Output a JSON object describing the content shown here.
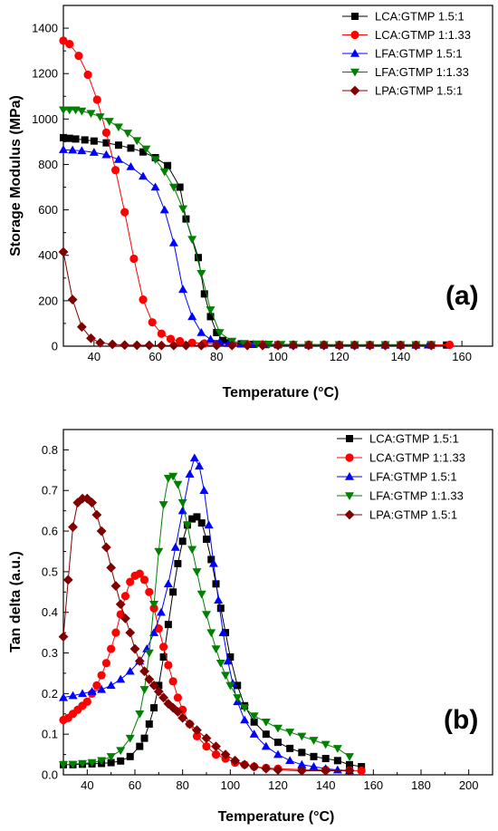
{
  "legend_entries": [
    "LCA:GTMP 1.5:1",
    "LCA:GTMP 1:1.33",
    "LFA:GTMP 1.5:1",
    "LFA:GTMP 1:1.33",
    "LPA:GTMP 1.5:1"
  ],
  "series_style": [
    {
      "color": "#000000",
      "marker": "square"
    },
    {
      "color": "#ff0000",
      "marker": "circle"
    },
    {
      "color": "#0000ff",
      "marker": "triangle-up"
    },
    {
      "color": "#008000",
      "marker": "triangle-down"
    },
    {
      "color": "#800000",
      "marker": "diamond"
    }
  ],
  "chart_data": [
    {
      "type": "line",
      "panel_label": "(a)",
      "xlabel": "Temperature (°C)",
      "ylabel": "Storage Modulus (MPa)",
      "xlim": [
        30,
        170
      ],
      "ylim": [
        0,
        1500
      ],
      "xticks": [
        40,
        60,
        80,
        100,
        120,
        140,
        160
      ],
      "yticks": [
        0,
        200,
        400,
        600,
        800,
        1000,
        1200,
        1400
      ],
      "legend_position": "top-right",
      "series": [
        {
          "name": "LCA:GTMP 1.5:1",
          "x": [
            30,
            32,
            34,
            37,
            40,
            44,
            48,
            52,
            56,
            60,
            64,
            68,
            70,
            74,
            76,
            78,
            80,
            82,
            84,
            88,
            92,
            96,
            100,
            105,
            110,
            115,
            120,
            125,
            130,
            135,
            140,
            145,
            150,
            155
          ],
          "y": [
            918,
            915,
            912,
            908,
            903,
            895,
            885,
            872,
            855,
            830,
            795,
            700,
            560,
            390,
            230,
            130,
            60,
            25,
            15,
            10,
            8,
            7,
            6,
            6,
            5,
            5,
            5,
            5,
            5,
            5,
            5,
            5,
            5,
            5
          ]
        },
        {
          "name": "LCA:GTMP 1:1.33",
          "x": [
            30,
            32,
            35,
            38,
            41,
            44,
            47,
            50,
            53,
            56,
            59,
            62,
            65,
            68,
            72,
            76,
            80,
            85,
            90,
            95,
            100,
            105,
            110,
            115,
            120,
            125,
            130,
            135,
            140,
            145,
            150,
            156
          ],
          "y": [
            1345,
            1330,
            1278,
            1195,
            1085,
            940,
            775,
            590,
            385,
            205,
            105,
            55,
            32,
            22,
            15,
            12,
            10,
            9,
            8,
            8,
            7,
            7,
            7,
            7,
            6,
            6,
            6,
            6,
            6,
            6,
            6,
            6
          ]
        },
        {
          "name": "LFA:GTMP 1.5:1",
          "x": [
            30,
            33,
            36,
            40,
            44,
            48,
            52,
            56,
            60,
            63,
            66,
            69,
            72,
            75,
            78,
            81,
            84,
            88,
            92,
            96,
            100,
            105,
            110,
            115,
            120,
            125,
            130,
            135,
            140,
            145,
            149
          ],
          "y": [
            865,
            863,
            860,
            853,
            843,
            822,
            790,
            748,
            700,
            600,
            455,
            250,
            130,
            60,
            30,
            18,
            12,
            9,
            8,
            7,
            7,
            6,
            6,
            6,
            6,
            6,
            5,
            5,
            5,
            5,
            5
          ]
        },
        {
          "name": "LFA:GTMP 1:1.33",
          "x": [
            30,
            32,
            34,
            36,
            39,
            42,
            45,
            48,
            51,
            54,
            57,
            60,
            63,
            66,
            69,
            72,
            75,
            78,
            81,
            85,
            89,
            93,
            97,
            101,
            105,
            110,
            115,
            120,
            125,
            130,
            135,
            140,
            145,
            150
          ],
          "y": [
            1040,
            1040,
            1040,
            1035,
            1025,
            1010,
            990,
            965,
            938,
            905,
            868,
            822,
            768,
            700,
            605,
            470,
            320,
            160,
            60,
            22,
            12,
            10,
            9,
            8,
            8,
            7,
            7,
            7,
            7,
            7,
            7,
            7,
            7,
            7
          ]
        },
        {
          "name": "LPA:GTMP 1.5:1",
          "x": [
            30,
            33,
            36,
            39,
            42,
            46,
            50,
            54,
            58,
            62,
            66,
            70,
            75,
            80,
            85,
            90,
            95,
            100,
            105,
            110,
            115,
            120,
            125,
            130,
            135,
            140,
            145,
            150
          ],
          "y": [
            415,
            205,
            85,
            35,
            15,
            8,
            5,
            4,
            4,
            3,
            3,
            3,
            3,
            3,
            3,
            3,
            3,
            3,
            3,
            3,
            3,
            3,
            3,
            3,
            3,
            3,
            3,
            3
          ]
        }
      ]
    },
    {
      "type": "line",
      "panel_label": "(b)",
      "xlabel": "Temperature (°C)",
      "ylabel": "Tan delta (a.u.)",
      "xlim": [
        30,
        210
      ],
      "ylim": [
        0,
        0.85
      ],
      "xticks": [
        40,
        60,
        80,
        100,
        120,
        140,
        160,
        180,
        200
      ],
      "yticks": [
        0.0,
        0.1,
        0.2,
        0.3,
        0.4,
        0.5,
        0.6,
        0.7,
        0.8
      ],
      "legend_position": "top-right",
      "series": [
        {
          "name": "LCA:GTMP 1.5:1",
          "x": [
            30,
            34,
            38,
            42,
            46,
            50,
            54,
            58,
            62,
            64,
            66,
            68,
            70,
            72,
            74,
            76,
            78,
            80,
            82,
            84,
            86,
            88,
            90,
            92,
            94,
            96,
            98,
            100,
            103,
            106,
            110,
            115,
            120,
            125,
            130,
            135,
            140,
            145,
            150,
            155
          ],
          "y": [
            0.025,
            0.025,
            0.026,
            0.027,
            0.028,
            0.03,
            0.034,
            0.045,
            0.07,
            0.09,
            0.125,
            0.165,
            0.22,
            0.29,
            0.37,
            0.45,
            0.52,
            0.575,
            0.615,
            0.63,
            0.635,
            0.62,
            0.58,
            0.53,
            0.47,
            0.41,
            0.35,
            0.29,
            0.22,
            0.17,
            0.13,
            0.1,
            0.08,
            0.065,
            0.055,
            0.045,
            0.04,
            0.035,
            0.025,
            0.02
          ]
        },
        {
          "name": "LCA:GTMP 1:1.33",
          "x": [
            30,
            32,
            34,
            36,
            38,
            40,
            42,
            44,
            46,
            48,
            50,
            52,
            54,
            56,
            58,
            60,
            62,
            64,
            66,
            68,
            70,
            72,
            74,
            76,
            78,
            80,
            83,
            86,
            90,
            94,
            98,
            102,
            106,
            110,
            115,
            120,
            130,
            140,
            150,
            155
          ],
          "y": [
            0.135,
            0.14,
            0.15,
            0.16,
            0.17,
            0.18,
            0.2,
            0.22,
            0.245,
            0.275,
            0.31,
            0.35,
            0.395,
            0.44,
            0.475,
            0.49,
            0.495,
            0.48,
            0.45,
            0.41,
            0.36,
            0.315,
            0.27,
            0.23,
            0.19,
            0.16,
            0.125,
            0.095,
            0.07,
            0.05,
            0.04,
            0.03,
            0.025,
            0.02,
            0.017,
            0.015,
            0.013,
            0.012,
            0.011,
            0.01
          ]
        },
        {
          "name": "LFA:GTMP 1.5:1",
          "x": [
            30,
            34,
            38,
            42,
            46,
            50,
            54,
            58,
            62,
            65,
            68,
            71,
            74,
            77,
            80,
            83,
            85,
            87,
            89,
            91,
            93,
            95,
            97,
            99,
            101,
            103,
            106,
            110,
            115,
            120,
            125,
            130,
            135,
            140,
            145,
            150
          ],
          "y": [
            0.19,
            0.195,
            0.2,
            0.205,
            0.21,
            0.22,
            0.235,
            0.255,
            0.28,
            0.31,
            0.35,
            0.4,
            0.47,
            0.56,
            0.65,
            0.74,
            0.78,
            0.76,
            0.7,
            0.615,
            0.52,
            0.43,
            0.35,
            0.28,
            0.225,
            0.18,
            0.135,
            0.1,
            0.07,
            0.05,
            0.035,
            0.025,
            0.02,
            0.015,
            0.012,
            0.01
          ]
        },
        {
          "name": "LFA:GTMP 1:1.33",
          "x": [
            30,
            34,
            38,
            42,
            46,
            50,
            54,
            58,
            62,
            64,
            66,
            68,
            70,
            72,
            74,
            76,
            78,
            80,
            82,
            84,
            86,
            88,
            90,
            92,
            94,
            96,
            98,
            100,
            103,
            106,
            110,
            115,
            120,
            125,
            130,
            135,
            140,
            145,
            150
          ],
          "y": [
            0.025,
            0.026,
            0.028,
            0.03,
            0.035,
            0.045,
            0.06,
            0.09,
            0.15,
            0.21,
            0.3,
            0.42,
            0.55,
            0.665,
            0.73,
            0.735,
            0.715,
            0.67,
            0.615,
            0.555,
            0.5,
            0.445,
            0.395,
            0.35,
            0.31,
            0.275,
            0.245,
            0.22,
            0.19,
            0.165,
            0.145,
            0.13,
            0.115,
            0.105,
            0.095,
            0.085,
            0.075,
            0.065,
            0.045
          ]
        },
        {
          "name": "LPA:GTMP 1.5:1",
          "x": [
            30,
            32,
            34,
            36,
            38,
            40,
            42,
            44,
            46,
            48,
            50,
            52,
            54,
            56,
            58,
            60,
            62,
            64,
            66,
            68,
            70,
            72,
            74,
            76,
            78,
            80,
            83,
            86,
            90,
            94,
            98,
            102,
            106,
            110,
            115,
            120,
            130,
            140,
            150
          ],
          "y": [
            0.34,
            0.48,
            0.61,
            0.67,
            0.68,
            0.68,
            0.67,
            0.64,
            0.6,
            0.56,
            0.51,
            0.465,
            0.42,
            0.385,
            0.35,
            0.31,
            0.28,
            0.255,
            0.235,
            0.22,
            0.205,
            0.19,
            0.175,
            0.165,
            0.155,
            0.14,
            0.125,
            0.11,
            0.09,
            0.07,
            0.05,
            0.035,
            0.025,
            0.02,
            0.015,
            0.012,
            0.01,
            0.01,
            0.01
          ]
        }
      ]
    }
  ]
}
